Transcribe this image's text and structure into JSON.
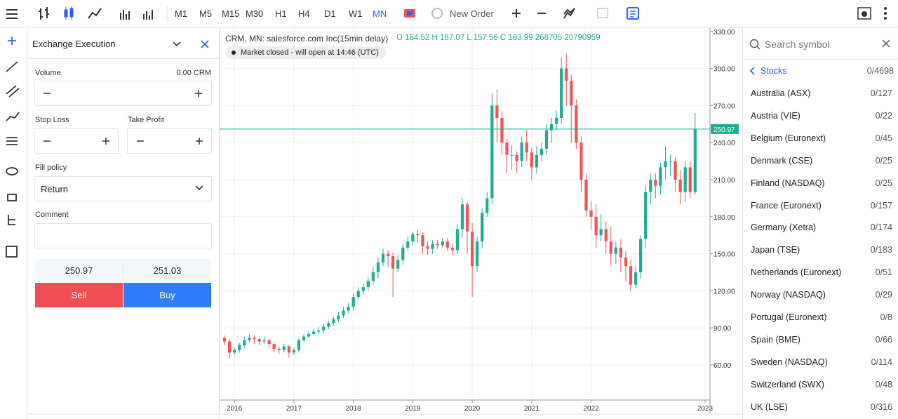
{
  "toolbar": {
    "timeframes": [
      "M1",
      "M5",
      "M15",
      "M30",
      "H1",
      "H4",
      "D1",
      "W1",
      "MN"
    ],
    "active_timeframe": "MN",
    "new_order": "New Order"
  },
  "order_panel": {
    "title": "Exchange Execution",
    "volume_label": "Volume",
    "volume_value": "0.00 CRM",
    "stop_loss": "Stop Loss",
    "take_profit": "Take Profit",
    "fill_policy_label": "Fill policy",
    "fill_policy": "Return",
    "comment": "Comment",
    "bid": "250.97",
    "ask": "251.03",
    "sell": "Sell",
    "buy": "Buy"
  },
  "symbols": {
    "search_placeholder": "Search symbol",
    "group": "Stocks",
    "group_count": "0/4698",
    "items": [
      {
        "name": "Australia (ASX)",
        "count": "0/127"
      },
      {
        "name": "Austria (VIE)",
        "count": "0/22"
      },
      {
        "name": "Belgium (Euronext)",
        "count": "0/45"
      },
      {
        "name": "Denmark (CSE)",
        "count": "0/25"
      },
      {
        "name": "Finland (NASDAQ)",
        "count": "0/25"
      },
      {
        "name": "France (Euronext)",
        "count": "0/157"
      },
      {
        "name": "Germany (Xetra)",
        "count": "0/174"
      },
      {
        "name": "Japan (TSE)",
        "count": "0/183"
      },
      {
        "name": "Netherlands (Euronext)",
        "count": "0/51"
      },
      {
        "name": "Norway (NASDAQ)",
        "count": "0/29"
      },
      {
        "name": "Portugal (Euronext)",
        "count": "0/8"
      },
      {
        "name": "Spain (BME)",
        "count": "0/66"
      },
      {
        "name": "Sweden (NASDAQ)",
        "count": "0/114"
      },
      {
        "name": "Switzerland (SWX)",
        "count": "0/48"
      },
      {
        "name": "UK (LSE)",
        "count": "0/316"
      }
    ]
  },
  "chart_data": {
    "type": "candlestick",
    "title": "CRM, MN: salesforce.com Inc(15min delay)",
    "ohlc": "O 164.52 H 187.07 L 157.56 C 183.99 268705 20790959",
    "status": "Market closed - will open at 14:46 (UTC)",
    "open": [
      82,
      79,
      70,
      72,
      76,
      80,
      82,
      81,
      79,
      80,
      77,
      73,
      72,
      75,
      70,
      72,
      80,
      83,
      85,
      87,
      88,
      91,
      94,
      97,
      100,
      104,
      107,
      115,
      120,
      123,
      128,
      135,
      143,
      150,
      148,
      138,
      145,
      155,
      160,
      166,
      165,
      156,
      154,
      158,
      157,
      160,
      155,
      153,
      170,
      190,
      168,
      140,
      160,
      183,
      195,
      270,
      260,
      240,
      230,
      230,
      225,
      240,
      232,
      220,
      230,
      235,
      250,
      255,
      260,
      300,
      290,
      270,
      240,
      210,
      185,
      180,
      165,
      170,
      160,
      150,
      155,
      147,
      140,
      125,
      135,
      162,
      200,
      210,
      205,
      220,
      225,
      225,
      210,
      200,
      220,
      200
    ],
    "high": [
      84,
      81,
      74,
      78,
      83,
      85,
      84,
      82,
      83,
      81,
      78,
      75,
      77,
      76,
      74,
      82,
      85,
      87,
      89,
      91,
      93,
      96,
      99,
      103,
      107,
      110,
      118,
      123,
      126,
      131,
      139,
      147,
      154,
      153,
      151,
      149,
      158,
      164,
      168,
      169,
      167,
      160,
      161,
      161,
      163,
      163,
      158,
      174,
      195,
      192,
      175,
      164,
      187,
      200,
      280,
      283,
      265,
      243,
      238,
      233,
      245,
      250,
      236,
      237,
      240,
      255,
      260,
      266,
      309,
      312,
      295,
      275,
      245,
      215,
      193,
      190,
      182,
      176,
      172,
      160,
      162,
      152,
      145,
      140,
      165,
      205,
      215,
      215,
      224,
      237,
      230,
      228,
      218,
      225,
      225,
      264
    ],
    "low": [
      76,
      65,
      68,
      70,
      74,
      78,
      77,
      76,
      77,
      74,
      70,
      69,
      70,
      66,
      68,
      70,
      79,
      82,
      84,
      85,
      86,
      89,
      92,
      95,
      98,
      102,
      104,
      113,
      117,
      120,
      125,
      130,
      140,
      139,
      115,
      135,
      141,
      152,
      157,
      159,
      150,
      149,
      150,
      154,
      155,
      152,
      149,
      150,
      163,
      150,
      115,
      135,
      155,
      180,
      190,
      240,
      230,
      215,
      218,
      215,
      220,
      225,
      210,
      215,
      225,
      230,
      240,
      250,
      255,
      270,
      240,
      235,
      200,
      180,
      170,
      155,
      160,
      150,
      140,
      142,
      135,
      128,
      120,
      122,
      130,
      155,
      190,
      195,
      198,
      210,
      213,
      200,
      190,
      192,
      195,
      198
    ],
    "close": [
      79,
      70,
      72,
      76,
      80,
      82,
      81,
      79,
      80,
      77,
      73,
      72,
      75,
      70,
      72,
      80,
      83,
      85,
      87,
      88,
      91,
      94,
      97,
      100,
      104,
      107,
      115,
      120,
      123,
      128,
      135,
      143,
      150,
      148,
      138,
      145,
      155,
      160,
      166,
      165,
      156,
      154,
      158,
      157,
      160,
      155,
      153,
      170,
      190,
      168,
      140,
      160,
      183,
      195,
      270,
      260,
      240,
      230,
      230,
      225,
      240,
      232,
      220,
      230,
      235,
      250,
      255,
      260,
      300,
      290,
      270,
      240,
      210,
      185,
      180,
      165,
      170,
      160,
      150,
      155,
      147,
      140,
      125,
      135,
      162,
      200,
      210,
      205,
      220,
      225,
      225,
      210,
      200,
      220,
      200,
      250.97
    ],
    "up_color": "#22ab94",
    "down_color": "#f05454",
    "ylim": [
      31.6,
      332.7
    ],
    "yticks": [
      {
        "value": 60,
        "label": "60.00"
      },
      {
        "value": 90,
        "label": "90.00"
      },
      {
        "value": 120,
        "label": "120.00"
      },
      {
        "value": 150,
        "label": "150.00"
      },
      {
        "value": 180,
        "label": "180.00"
      },
      {
        "value": 210,
        "label": "210.00"
      },
      {
        "value": 240,
        "label": "240.00"
      },
      {
        "value": 270,
        "label": "270.00"
      },
      {
        "value": 300,
        "label": "300.00"
      },
      {
        "value": 330,
        "label": "330.00"
      }
    ],
    "xlim": [
      -1,
      98
    ],
    "xticks": [
      {
        "value": 2,
        "label": "2016"
      },
      {
        "value": 14,
        "label": "2017"
      },
      {
        "value": 26,
        "label": "2018"
      },
      {
        "value": 38,
        "label": "2019"
      },
      {
        "value": 50,
        "label": "2020"
      },
      {
        "value": 62,
        "label": "2021"
      },
      {
        "value": 74,
        "label": "2022"
      },
      {
        "value": 97,
        "label": "2023"
      }
    ],
    "current_price": 250.97,
    "current_price_label": "250.97",
    "grid": true
  }
}
